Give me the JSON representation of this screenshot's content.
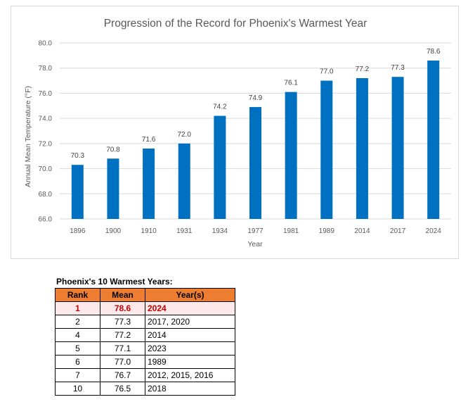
{
  "chart_data": {
    "type": "bar",
    "title": "Progression of the Record for Phoenix's Warmest Year",
    "xlabel": "Year",
    "ylabel": "Annual Mean Temperature (°F)",
    "ylim": [
      66.0,
      80.0
    ],
    "yticks": [
      "66.0",
      "68.0",
      "70.0",
      "72.0",
      "74.0",
      "76.0",
      "78.0",
      "80.0"
    ],
    "categories": [
      "1896",
      "1900",
      "1910",
      "1931",
      "1934",
      "1977",
      "1981",
      "1989",
      "2014",
      "2017",
      "2024"
    ],
    "values": [
      70.3,
      70.8,
      71.6,
      72.0,
      74.2,
      74.9,
      76.1,
      77.0,
      77.2,
      77.3,
      78.6
    ],
    "value_labels": [
      "70.3",
      "70.8",
      "71.6",
      "72.0",
      "74.2",
      "74.9",
      "76.1",
      "77.0",
      "77.2",
      "77.3",
      "78.6"
    ],
    "bar_color": "#0070c0",
    "grid": true,
    "legend": "none"
  },
  "table": {
    "title": "Phoenix's 10 Warmest Years:",
    "headers": [
      "Rank",
      "Mean",
      "Year(s)"
    ],
    "rows": [
      {
        "rank": "1",
        "mean": "78.6",
        "years": "2024"
      },
      {
        "rank": "2",
        "mean": "77.3",
        "years": "2017, 2020"
      },
      {
        "rank": "4",
        "mean": "77.2",
        "years": "2014"
      },
      {
        "rank": "5",
        "mean": "77.1",
        "years": "2023"
      },
      {
        "rank": "6",
        "mean": "77.0",
        "years": "1989"
      },
      {
        "rank": "7",
        "mean": "76.7",
        "years": "2012, 2015, 2016"
      },
      {
        "rank": "10",
        "mean": "76.5",
        "years": "2018"
      }
    ],
    "header_color": "#ed7d31",
    "highlight_color": "#c00000"
  }
}
